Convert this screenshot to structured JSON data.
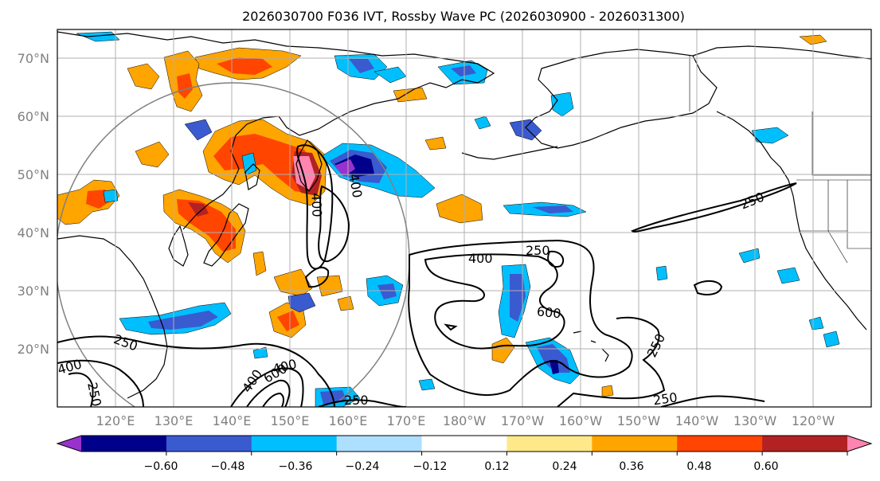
{
  "title": "2026030700 F036 IVT, Rossby Wave PC (2026030900 - 2026031300)",
  "latitude_labels": [
    "70°N",
    "60°N",
    "50°N",
    "40°N",
    "30°N",
    "20°N"
  ],
  "longitude_labels": [
    "120°E",
    "130°E",
    "140°E",
    "150°E",
    "160°E",
    "170°E",
    "180°W",
    "170°W",
    "160°W",
    "150°W",
    "140°W",
    "130°W",
    "120°W"
  ],
  "colorbar": {
    "colors": [
      "#9932CC",
      "#00008B",
      "#3A5AD0",
      "#00BFFF",
      "#ADDFFF",
      "#FFFFFF",
      "#FFE88A",
      "#FFA500",
      "#FF4500",
      "#B22222",
      "#FF85B0"
    ],
    "tick_labels": [
      "−0.60",
      "−0.48",
      "−0.36",
      "−0.24",
      "−0.12",
      "0.12",
      "0.24",
      "0.36",
      "0.48",
      "0.60"
    ]
  },
  "contour_labels": {
    "c250_east": "250",
    "c400_mid": "400",
    "c250_mid": "250",
    "c600_mid": "600",
    "c250_right": "250",
    "c250_bottom": "250",
    "c250_bottom_left": "250",
    "c250_sw": "250",
    "c400_sw": "400",
    "c250_sw2": "250",
    "c400_kam_a": "400",
    "c400_kam_b": "400",
    "c600_sw": "600",
    "c400_sw2": "400",
    "c400_sw3": "400"
  },
  "colors": {
    "grid": "#b0b0b0",
    "coast": "#000000",
    "circle": "#808080"
  }
}
